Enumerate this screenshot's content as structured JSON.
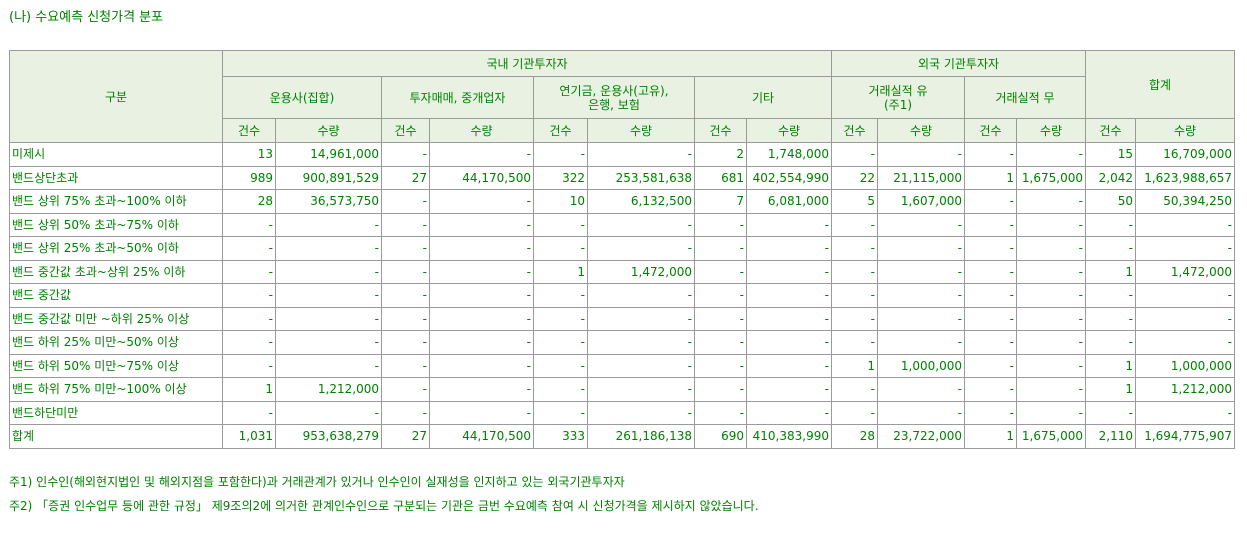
{
  "title": "(나) 수요예측 신청가격 분포",
  "header": {
    "category": "구분",
    "domestic": "국내 기관투자자",
    "foreign": "외국 기관투자자",
    "total": "합계",
    "groups": [
      "운용사(집합)",
      "투자매매, 중개업자",
      "연기금, 운용사(고유),\n은행, 보험",
      "기타",
      "거래실적 유\n(주1)",
      "거래실적 무"
    ],
    "count": "건수",
    "quantity": "수량"
  },
  "rows": [
    {
      "label": "미제시",
      "cells": [
        "13",
        "14,961,000",
        "-",
        "-",
        "-",
        "-",
        "2",
        "1,748,000",
        "-",
        "-",
        "-",
        "-",
        "15",
        "16,709,000"
      ]
    },
    {
      "label": "밴드상단초과",
      "cells": [
        "989",
        "900,891,529",
        "27",
        "44,170,500",
        "322",
        "253,581,638",
        "681",
        "402,554,990",
        "22",
        "21,115,000",
        "1",
        "1,675,000",
        "2,042",
        "1,623,988,657"
      ]
    },
    {
      "label": "밴드 상위 75% 초과~100% 이하",
      "cells": [
        "28",
        "36,573,750",
        "-",
        "-",
        "10",
        "6,132,500",
        "7",
        "6,081,000",
        "5",
        "1,607,000",
        "-",
        "-",
        "50",
        "50,394,250"
      ]
    },
    {
      "label": "밴드 상위 50% 초과~75% 이하",
      "cells": [
        "-",
        "-",
        "-",
        "-",
        "-",
        "-",
        "-",
        "-",
        "-",
        "-",
        "-",
        "-",
        "-",
        "-"
      ]
    },
    {
      "label": "밴드 상위 25% 초과~50% 이하",
      "cells": [
        "-",
        "-",
        "-",
        "-",
        "-",
        "-",
        "-",
        "-",
        "-",
        "-",
        "-",
        "-",
        "-",
        "-"
      ]
    },
    {
      "label": "밴드 중간값 초과~상위 25% 이하",
      "cells": [
        "-",
        "-",
        "-",
        "-",
        "1",
        "1,472,000",
        "-",
        "-",
        "-",
        "-",
        "-",
        "-",
        "1",
        "1,472,000"
      ]
    },
    {
      "label": "밴드 중간값",
      "cells": [
        "-",
        "-",
        "-",
        "-",
        "-",
        "-",
        "-",
        "-",
        "-",
        "-",
        "-",
        "-",
        "-",
        "-"
      ]
    },
    {
      "label": "밴드 중간값 미만 ~하위 25% 이상",
      "cells": [
        "-",
        "-",
        "-",
        "-",
        "-",
        "-",
        "-",
        "-",
        "-",
        "-",
        "-",
        "-",
        "-",
        "-"
      ]
    },
    {
      "label": "밴드 하위 25% 미만~50% 이상",
      "cells": [
        "-",
        "-",
        "-",
        "-",
        "-",
        "-",
        "-",
        "-",
        "-",
        "-",
        "-",
        "-",
        "-",
        "-"
      ]
    },
    {
      "label": "밴드 하위 50% 미만~75% 이상",
      "cells": [
        "-",
        "-",
        "-",
        "-",
        "-",
        "-",
        "-",
        "-",
        "1",
        "1,000,000",
        "-",
        "-",
        "1",
        "1,000,000"
      ]
    },
    {
      "label": "밴드 하위 75% 미만~100% 이상",
      "cells": [
        "1",
        "1,212,000",
        "-",
        "-",
        "-",
        "-",
        "-",
        "-",
        "-",
        "-",
        "-",
        "-",
        "1",
        "1,212,000"
      ]
    },
    {
      "label": "밴드하단미만",
      "cells": [
        "-",
        "-",
        "-",
        "-",
        "-",
        "-",
        "-",
        "-",
        "-",
        "-",
        "-",
        "-",
        "-",
        "-"
      ]
    },
    {
      "label": "합계",
      "cells": [
        "1,031",
        "953,638,279",
        "27",
        "44,170,500",
        "333",
        "261,186,138",
        "690",
        "410,383,990",
        "28",
        "23,722,000",
        "1",
        "1,675,000",
        "2,110",
        "1,694,775,907"
      ]
    }
  ],
  "notes": [
    "주1) 인수인(해외현지법인 및 해외지점을 포함한다)과 거래관계가 있거나 인수인이 실재성을 인지하고 있는 외국기관투자자",
    "주2) 「증권 인수업무 등에 관한 규정」 제9조의2에 의거한 관계인수인으로 구분되는 기관은 금번 수요예측 참여 시 신청가격을 제시하지 않았습니다."
  ]
}
